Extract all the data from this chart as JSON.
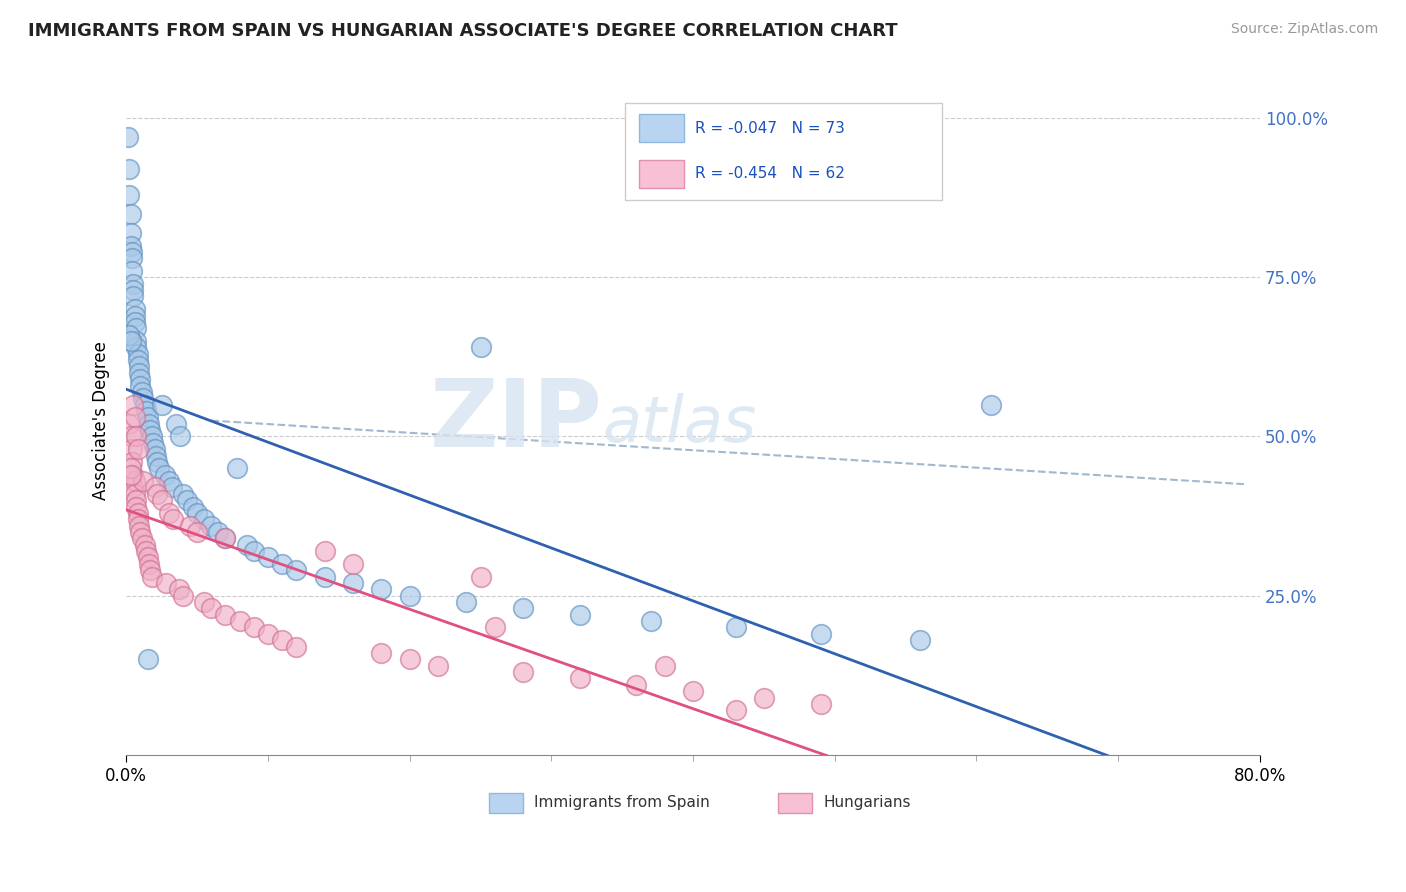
{
  "title": "IMMIGRANTS FROM SPAIN VS HUNGARIAN ASSOCIATE'S DEGREE CORRELATION CHART",
  "source_text": "Source: ZipAtlas.com",
  "ylabel": "Associate's Degree",
  "watermark_zip": "ZIP",
  "watermark_atlas": "atlas",
  "series1_color": "#a8c8e8",
  "series1_edge": "#6090c0",
  "series2_color": "#f0b0c8",
  "series2_edge": "#d07090",
  "trend1_color": "#3060b0",
  "trend2_color": "#e05080",
  "trend_dash_color": "#a0b8d0",
  "ytick_color": "#4472c4",
  "xmin": 0.0,
  "xmax": 0.8,
  "ymin": 0.0,
  "ymax": 1.05,
  "ytick_vals": [
    0.0,
    0.25,
    0.5,
    0.75,
    1.0
  ],
  "ytick_labels": [
    "",
    "25.0%",
    "50.0%",
    "75.0%",
    "100.0%"
  ],
  "xtick_vals": [
    0.0,
    0.8
  ],
  "xtick_labels": [
    "0.0%",
    "80.0%"
  ],
  "legend_r1": "R = -0.047",
  "legend_n1": "N = 73",
  "legend_r2": "R = -0.454",
  "legend_n2": "N = 62",
  "spain_x": [
    0.001,
    0.002,
    0.002,
    0.003,
    0.003,
    0.003,
    0.004,
    0.004,
    0.004,
    0.005,
    0.005,
    0.005,
    0.006,
    0.006,
    0.006,
    0.007,
    0.007,
    0.007,
    0.008,
    0.008,
    0.009,
    0.009,
    0.01,
    0.01,
    0.011,
    0.012,
    0.013,
    0.014,
    0.015,
    0.016,
    0.017,
    0.018,
    0.019,
    0.02,
    0.021,
    0.022,
    0.023,
    0.025,
    0.027,
    0.03,
    0.032,
    0.035,
    0.038,
    0.04,
    0.043,
    0.047,
    0.05,
    0.055,
    0.06,
    0.065,
    0.07,
    0.078,
    0.085,
    0.09,
    0.1,
    0.11,
    0.12,
    0.14,
    0.16,
    0.18,
    0.2,
    0.24,
    0.28,
    0.32,
    0.37,
    0.43,
    0.49,
    0.56,
    0.61,
    0.002,
    0.003,
    0.25,
    0.015
  ],
  "spain_y": [
    0.97,
    0.92,
    0.88,
    0.85,
    0.82,
    0.8,
    0.79,
    0.78,
    0.76,
    0.74,
    0.73,
    0.72,
    0.7,
    0.69,
    0.68,
    0.67,
    0.65,
    0.64,
    0.63,
    0.62,
    0.61,
    0.6,
    0.59,
    0.58,
    0.57,
    0.56,
    0.55,
    0.54,
    0.53,
    0.52,
    0.51,
    0.5,
    0.49,
    0.48,
    0.47,
    0.46,
    0.45,
    0.55,
    0.44,
    0.43,
    0.42,
    0.52,
    0.5,
    0.41,
    0.4,
    0.39,
    0.38,
    0.37,
    0.36,
    0.35,
    0.34,
    0.45,
    0.33,
    0.32,
    0.31,
    0.3,
    0.29,
    0.28,
    0.27,
    0.26,
    0.25,
    0.24,
    0.23,
    0.22,
    0.21,
    0.2,
    0.19,
    0.18,
    0.55,
    0.66,
    0.65,
    0.64,
    0.15
  ],
  "hungarian_x": [
    0.002,
    0.003,
    0.004,
    0.004,
    0.005,
    0.005,
    0.006,
    0.006,
    0.007,
    0.007,
    0.008,
    0.008,
    0.009,
    0.01,
    0.011,
    0.012,
    0.013,
    0.014,
    0.015,
    0.016,
    0.017,
    0.018,
    0.02,
    0.022,
    0.025,
    0.028,
    0.03,
    0.033,
    0.037,
    0.04,
    0.045,
    0.05,
    0.055,
    0.06,
    0.07,
    0.08,
    0.09,
    0.1,
    0.11,
    0.12,
    0.14,
    0.16,
    0.18,
    0.2,
    0.22,
    0.25,
    0.28,
    0.32,
    0.36,
    0.4,
    0.45,
    0.49,
    0.003,
    0.003,
    0.005,
    0.006,
    0.007,
    0.008,
    0.07,
    0.38,
    0.26,
    0.43
  ],
  "hungarian_y": [
    0.52,
    0.5,
    0.48,
    0.46,
    0.44,
    0.42,
    0.43,
    0.41,
    0.4,
    0.39,
    0.38,
    0.37,
    0.36,
    0.35,
    0.34,
    0.43,
    0.33,
    0.32,
    0.31,
    0.3,
    0.29,
    0.28,
    0.42,
    0.41,
    0.4,
    0.27,
    0.38,
    0.37,
    0.26,
    0.25,
    0.36,
    0.35,
    0.24,
    0.23,
    0.22,
    0.21,
    0.2,
    0.19,
    0.18,
    0.17,
    0.32,
    0.3,
    0.16,
    0.15,
    0.14,
    0.28,
    0.13,
    0.12,
    0.11,
    0.1,
    0.09,
    0.08,
    0.45,
    0.44,
    0.55,
    0.53,
    0.5,
    0.48,
    0.34,
    0.14,
    0.2,
    0.07
  ]
}
